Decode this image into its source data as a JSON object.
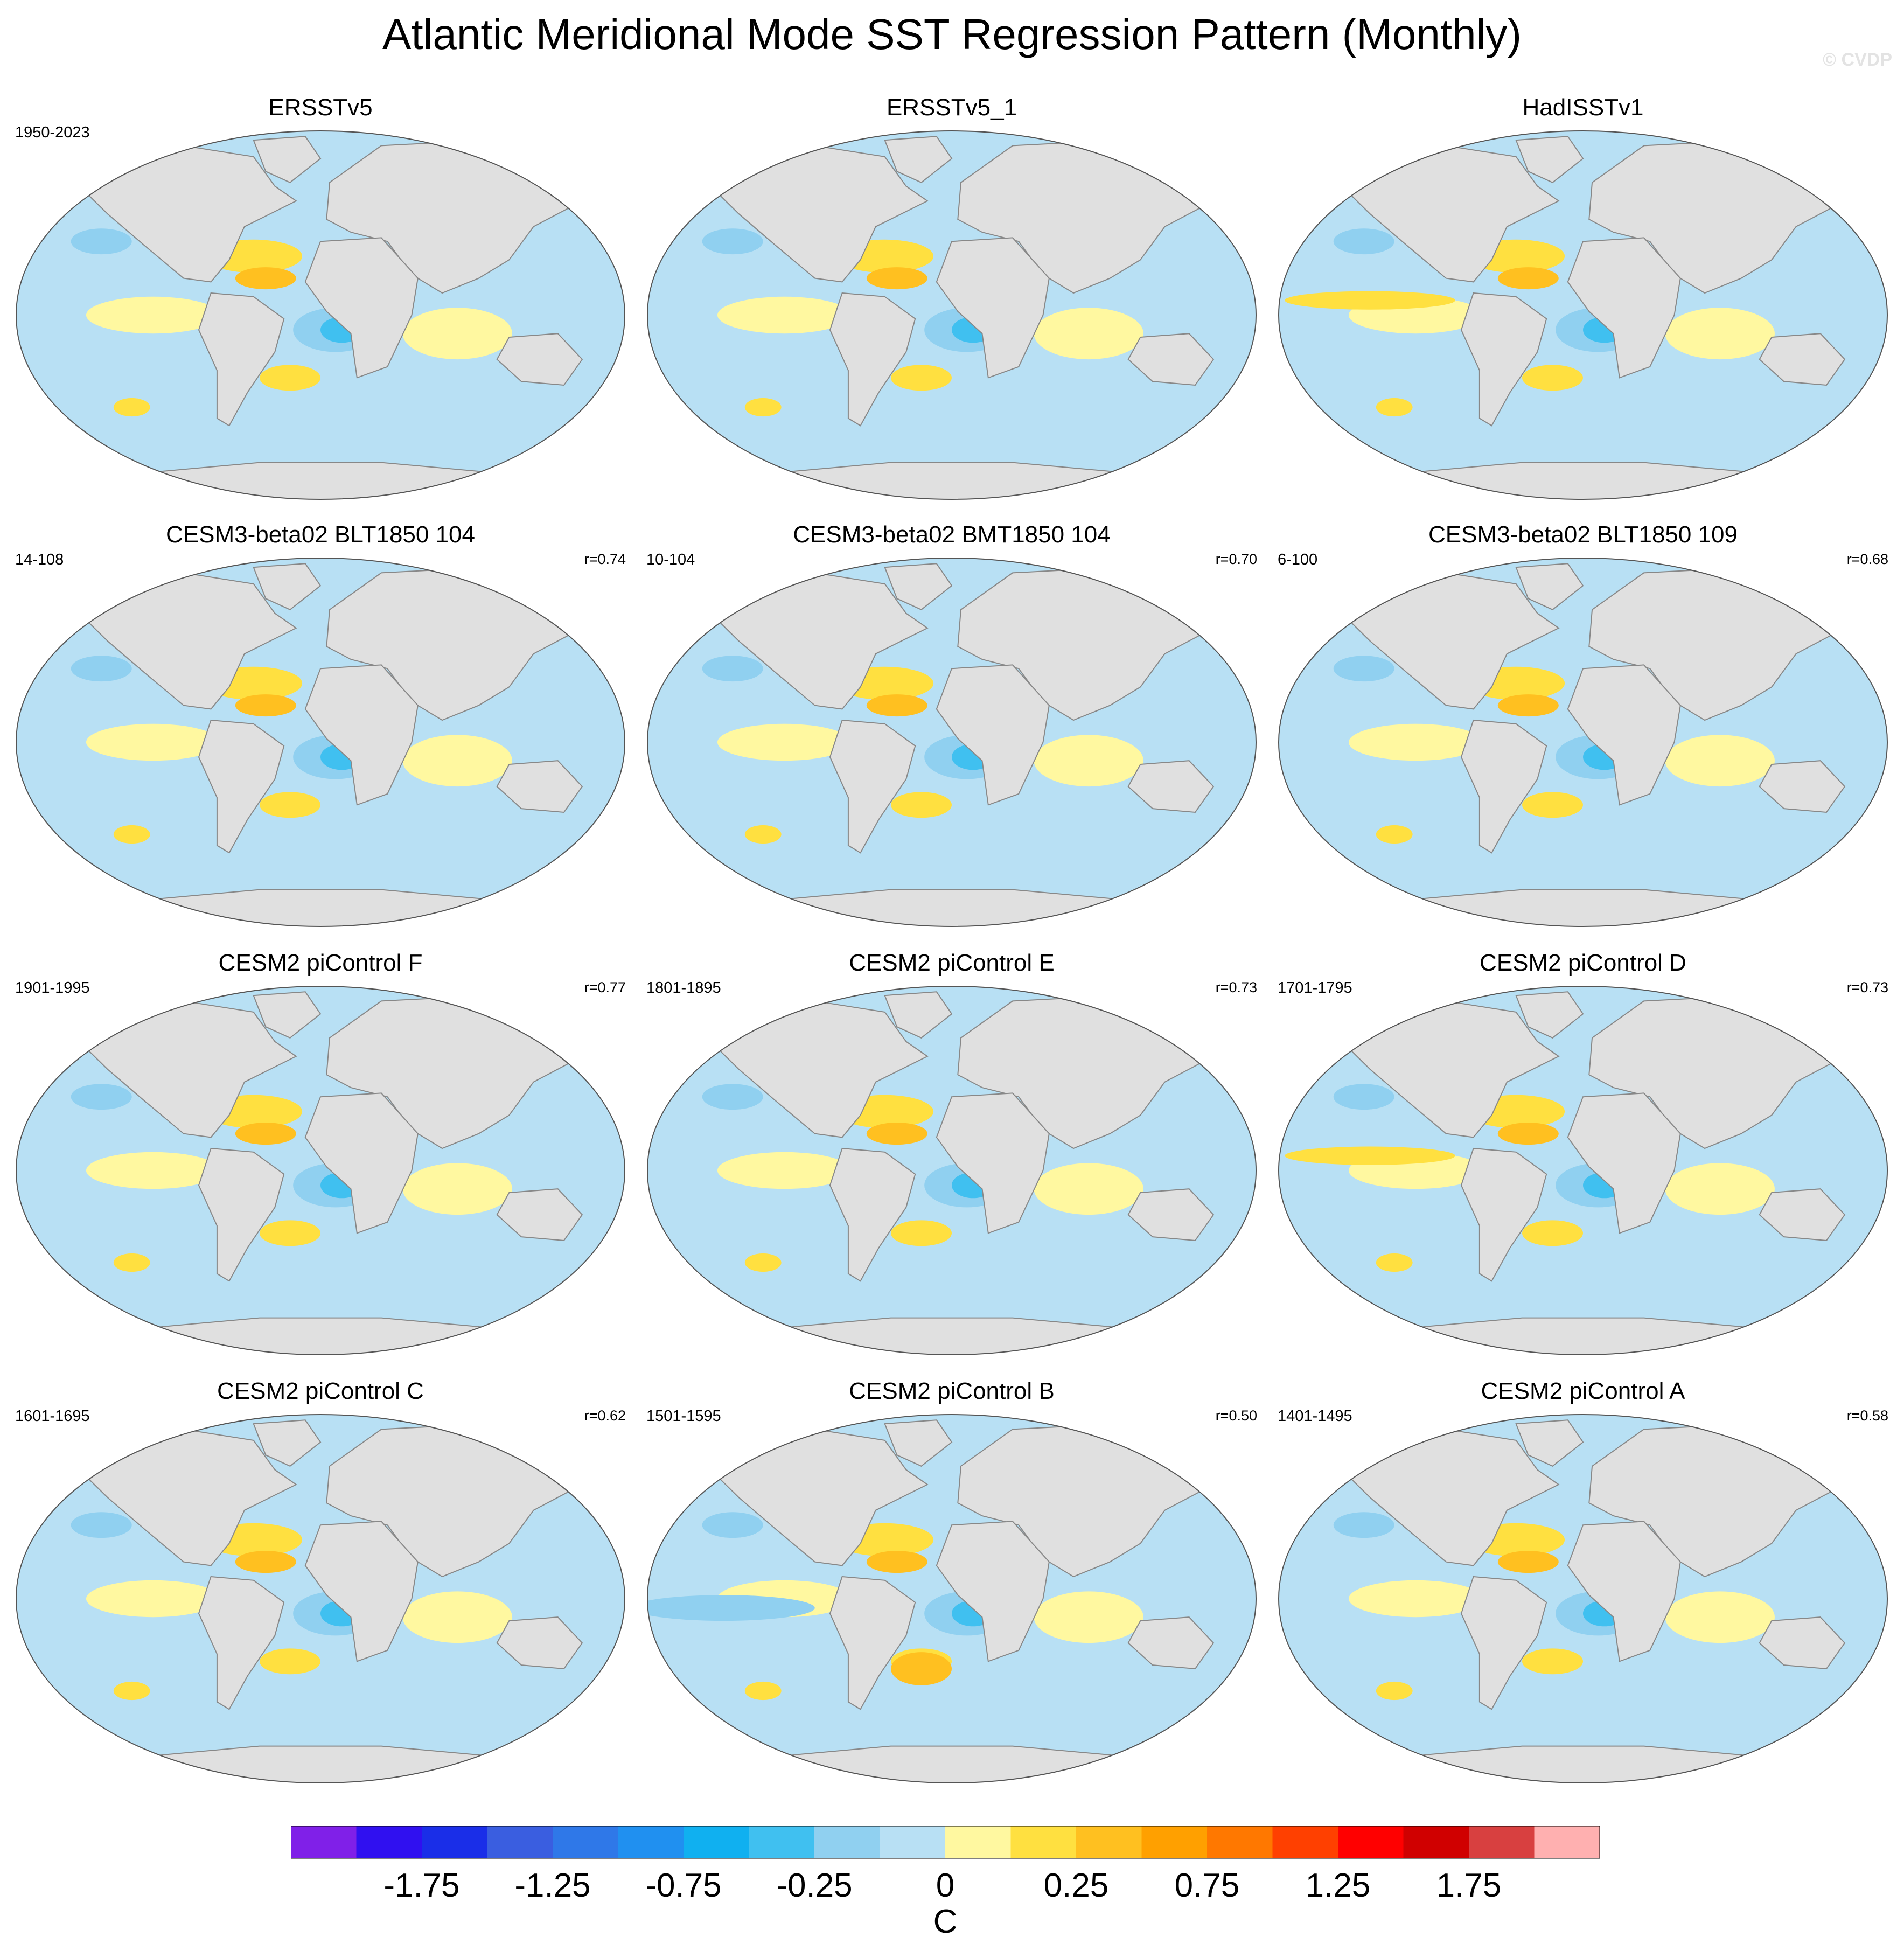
{
  "title": "Atlantic Meridional Mode SST Regression Pattern (Monthly)",
  "watermark": "© CVDP",
  "panels": [
    {
      "title": "ERSSTv5",
      "period": "1950-2023",
      "corr": ""
    },
    {
      "title": "ERSSTv5_1",
      "period": "",
      "corr": ""
    },
    {
      "title": "HadISSTv1",
      "period": "",
      "corr": ""
    },
    {
      "title": "CESM3-beta02 BLT1850 104",
      "period": "14-108",
      "corr": "r=0.74"
    },
    {
      "title": "CESM3-beta02 BMT1850 104",
      "period": "10-104",
      "corr": "r=0.70"
    },
    {
      "title": "CESM3-beta02 BLT1850 109",
      "period": "6-100",
      "corr": "r=0.68"
    },
    {
      "title": "CESM2 piControl F",
      "period": "1901-1995",
      "corr": "r=0.77"
    },
    {
      "title": "CESM2 piControl E",
      "period": "1801-1895",
      "corr": "r=0.73"
    },
    {
      "title": "CESM2 piControl D",
      "period": "1701-1795",
      "corr": "r=0.73"
    },
    {
      "title": "CESM2 piControl C",
      "period": "1601-1695",
      "corr": "r=0.62"
    },
    {
      "title": "CESM2 piControl B",
      "period": "1501-1595",
      "corr": "r=0.50"
    },
    {
      "title": "CESM2 piControl A",
      "period": "1401-1495",
      "corr": "r=0.58"
    }
  ],
  "colorbar": {
    "colors": [
      "#8020e8",
      "#3010f0",
      "#1a2ee8",
      "#3a5ee0",
      "#2f78e8",
      "#2090f0",
      "#10b0f0",
      "#40c0f0",
      "#90d0f0",
      "#b8e0f4",
      "#fff8a0",
      "#ffe040",
      "#ffc020",
      "#ffa000",
      "#ff7800",
      "#ff4000",
      "#ff0000",
      "#d00000",
      "#d84040",
      "#ffb0b0"
    ],
    "labels": [
      "-1.75",
      "-1.25",
      "-0.75",
      "-0.25",
      "0",
      "0.25",
      "0.75",
      "1.25",
      "1.75"
    ],
    "units": "C"
  },
  "colors": {
    "land": "#e0e0e0",
    "coast": "#888888",
    "ocean_neutral_pos": "#fff8a0",
    "ocean_neutral_neg": "#b8e0f4"
  }
}
